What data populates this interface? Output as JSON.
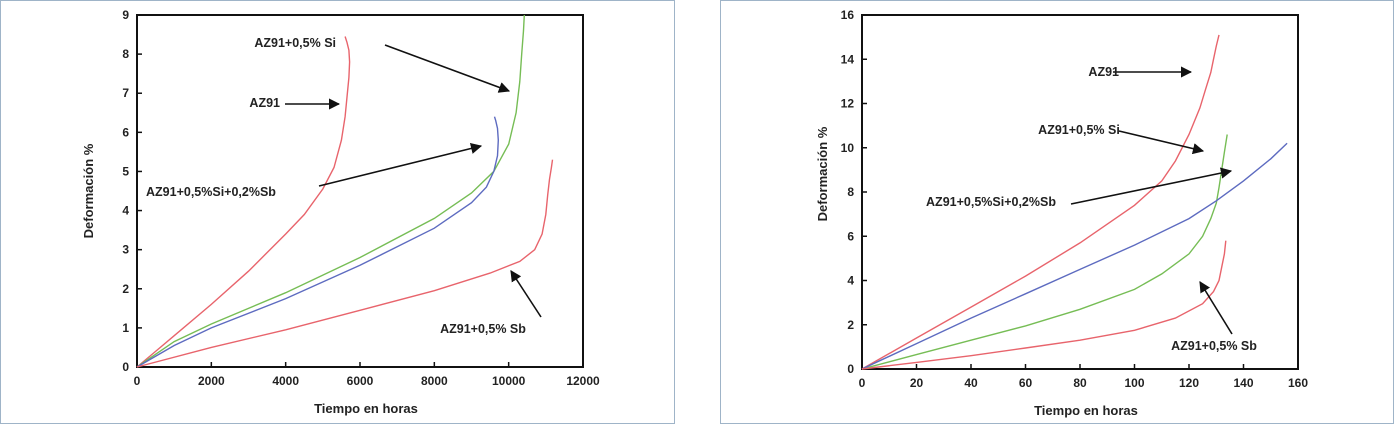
{
  "chart_data": [
    {
      "type": "line",
      "xlabel": "Tiempo en horas",
      "ylabel": "Deformación %",
      "xlim": [
        0,
        12000
      ],
      "ylim": [
        0,
        9
      ],
      "xticks": [
        "0",
        "2000",
        "4000",
        "6000",
        "8000",
        "10000",
        "12000"
      ],
      "yticks": [
        "0",
        "1",
        "2",
        "3",
        "4",
        "5",
        "6",
        "7",
        "8",
        "9"
      ],
      "grid": false,
      "series": [
        {
          "name": "AZ91",
          "color": "#e8646c",
          "x": [
            0,
            500,
            1000,
            2000,
            3000,
            4000,
            4500,
            5000,
            5300,
            5500,
            5600,
            5650,
            5700,
            5720,
            5700,
            5650,
            5600
          ],
          "y": [
            0,
            0.4,
            0.8,
            1.6,
            2.45,
            3.4,
            3.9,
            4.55,
            5.1,
            5.8,
            6.4,
            6.9,
            7.4,
            7.8,
            8.1,
            8.3,
            8.45
          ]
        },
        {
          "name": "AZ91+0,5% Si",
          "color": "#76bd55",
          "x": [
            0,
            1000,
            2000,
            4000,
            6000,
            8000,
            9000,
            9600,
            10000,
            10200,
            10300,
            10350,
            10400,
            10420
          ],
          "y": [
            0,
            0.65,
            1.1,
            1.9,
            2.8,
            3.8,
            4.45,
            5.0,
            5.7,
            6.5,
            7.3,
            8.0,
            8.6,
            9.0
          ]
        },
        {
          "name": "AZ91+0,5%Si+0,2%Sb",
          "color": "#5d6bc0",
          "x": [
            0,
            1000,
            2000,
            4000,
            6000,
            8000,
            9000,
            9400,
            9600,
            9700,
            9720,
            9700,
            9650,
            9620
          ],
          "y": [
            0,
            0.55,
            1.0,
            1.75,
            2.6,
            3.55,
            4.2,
            4.6,
            5.0,
            5.4,
            5.8,
            6.1,
            6.3,
            6.4
          ]
        },
        {
          "name": "AZ91+0,5% Sb",
          "color": "#e8646c",
          "x": [
            0,
            2000,
            4000,
            6000,
            8000,
            9500,
            10300,
            10700,
            10900,
            11000,
            11050,
            11100,
            11150,
            11180
          ],
          "y": [
            0,
            0.5,
            0.95,
            1.45,
            1.95,
            2.4,
            2.7,
            3.0,
            3.4,
            3.9,
            4.4,
            4.8,
            5.1,
            5.3
          ]
        }
      ],
      "annotations": [
        {
          "text": "AZ91+0,5% Si",
          "points_to": "AZ91+0,5% Si"
        },
        {
          "text": "AZ91",
          "points_to": "AZ91"
        },
        {
          "text": "AZ91+0,5%Si+0,2%Sb",
          "points_to": "AZ91+0,5%Si+0,2%Sb"
        },
        {
          "text": "AZ91+0,5% Sb",
          "points_to": "AZ91+0,5% Sb"
        }
      ]
    },
    {
      "type": "line",
      "xlabel": "Tiempo en horas",
      "ylabel": "Deformación %",
      "xlim": [
        0,
        160
      ],
      "ylim": [
        0,
        16
      ],
      "xticks": [
        "0",
        "20",
        "40",
        "60",
        "80",
        "100",
        "120",
        "140",
        "160"
      ],
      "yticks": [
        "0",
        "2",
        "4",
        "6",
        "8",
        "10",
        "12",
        "14",
        "16"
      ],
      "grid": false,
      "series": [
        {
          "name": "AZ91",
          "color": "#e8646c",
          "x": [
            0,
            20,
            40,
            60,
            80,
            100,
            110,
            115,
            120,
            124,
            126,
            128,
            129,
            130,
            131
          ],
          "y": [
            0,
            1.4,
            2.8,
            4.2,
            5.7,
            7.4,
            8.5,
            9.4,
            10.6,
            11.8,
            12.6,
            13.4,
            14.0,
            14.6,
            15.1
          ]
        },
        {
          "name": "AZ91+0,5% Si",
          "color": "#76bd55",
          "x": [
            0,
            20,
            40,
            60,
            80,
            100,
            110,
            120,
            125,
            128,
            130,
            131,
            132,
            133,
            134
          ],
          "y": [
            0,
            0.65,
            1.3,
            1.95,
            2.7,
            3.6,
            4.3,
            5.2,
            6.0,
            6.8,
            7.5,
            8.2,
            9.0,
            9.8,
            10.6
          ]
        },
        {
          "name": "AZ91+0,5%Si+0,2%Sb",
          "color": "#5d6bc0",
          "x": [
            0,
            20,
            40,
            60,
            80,
            100,
            120,
            130,
            140,
            150,
            156
          ],
          "y": [
            0,
            1.15,
            2.3,
            3.4,
            4.5,
            5.6,
            6.8,
            7.6,
            8.5,
            9.5,
            10.2
          ]
        },
        {
          "name": "AZ91+0,5% Sb",
          "color": "#e8646c",
          "x": [
            0,
            20,
            40,
            60,
            80,
            100,
            115,
            125,
            129,
            131,
            132,
            133,
            133.5
          ],
          "y": [
            0,
            0.3,
            0.6,
            0.95,
            1.3,
            1.75,
            2.3,
            2.95,
            3.5,
            4.0,
            4.6,
            5.2,
            5.8
          ]
        }
      ],
      "annotations": [
        {
          "text": "AZ91",
          "points_to": "AZ91"
        },
        {
          "text": "AZ91+0,5% Si",
          "points_to": "AZ91+0,5% Si"
        },
        {
          "text": "AZ91+0,5%Si+0,2%Sb",
          "points_to": "AZ91+0,5%Si+0,2%Sb"
        },
        {
          "text": "AZ91+0,5% Sb",
          "points_to": "AZ91+0,5% Sb"
        }
      ]
    }
  ]
}
